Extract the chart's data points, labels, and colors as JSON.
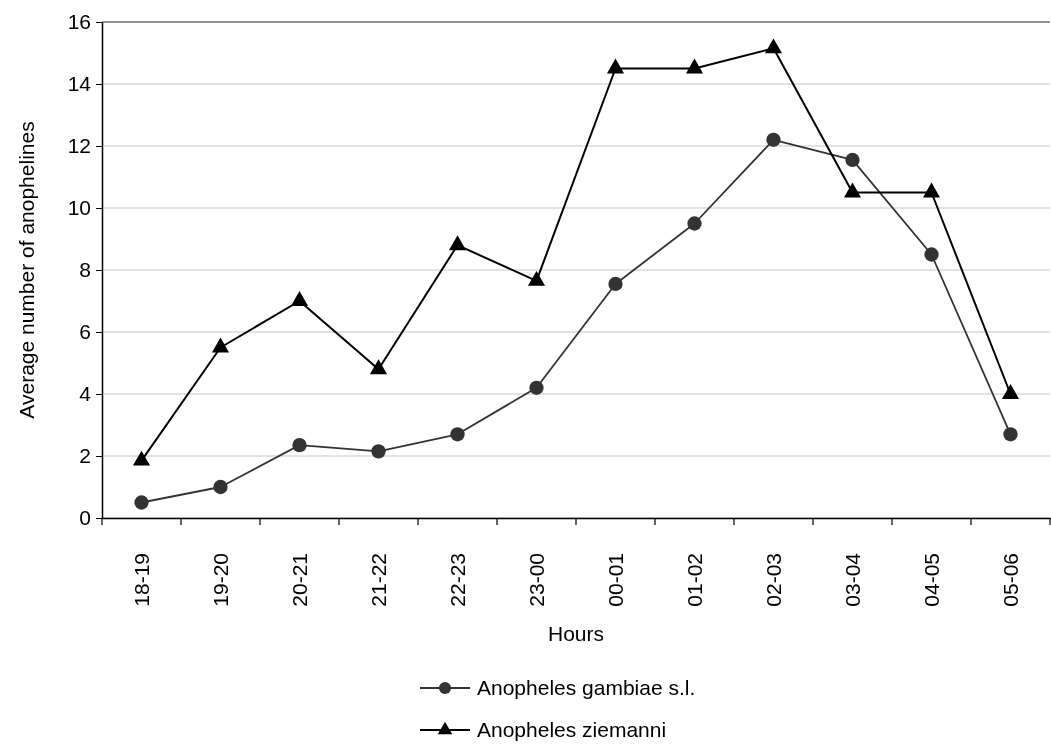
{
  "chart_data": {
    "type": "line",
    "xlabel": "Hours",
    "ylabel": "Average number of anophelines",
    "categories": [
      "18-19",
      "19-20",
      "20-21",
      "21-22",
      "22-23",
      "23-00",
      "00-01",
      "01-02",
      "02-03",
      "03-04",
      "04-05",
      "05-06"
    ],
    "series": [
      {
        "name": "Anopheles gambiae s.l.",
        "color": "#333333",
        "marker": "circle",
        "values": [
          0.5,
          1.0,
          2.35,
          2.15,
          2.7,
          4.2,
          7.55,
          9.5,
          12.2,
          11.55,
          8.5,
          2.7
        ]
      },
      {
        "name": "Anopheles ziemanni",
        "color": "#000000",
        "marker": "triangle",
        "values": [
          1.85,
          5.5,
          7.0,
          4.8,
          8.8,
          7.65,
          14.5,
          14.5,
          15.15,
          10.5,
          10.5,
          4.0
        ]
      }
    ],
    "ylim": [
      0,
      16
    ],
    "yticks": [
      0,
      2,
      4,
      6,
      8,
      10,
      12,
      14,
      16
    ],
    "grid": "y",
    "legend": "bottom",
    "line_style": "solid"
  }
}
